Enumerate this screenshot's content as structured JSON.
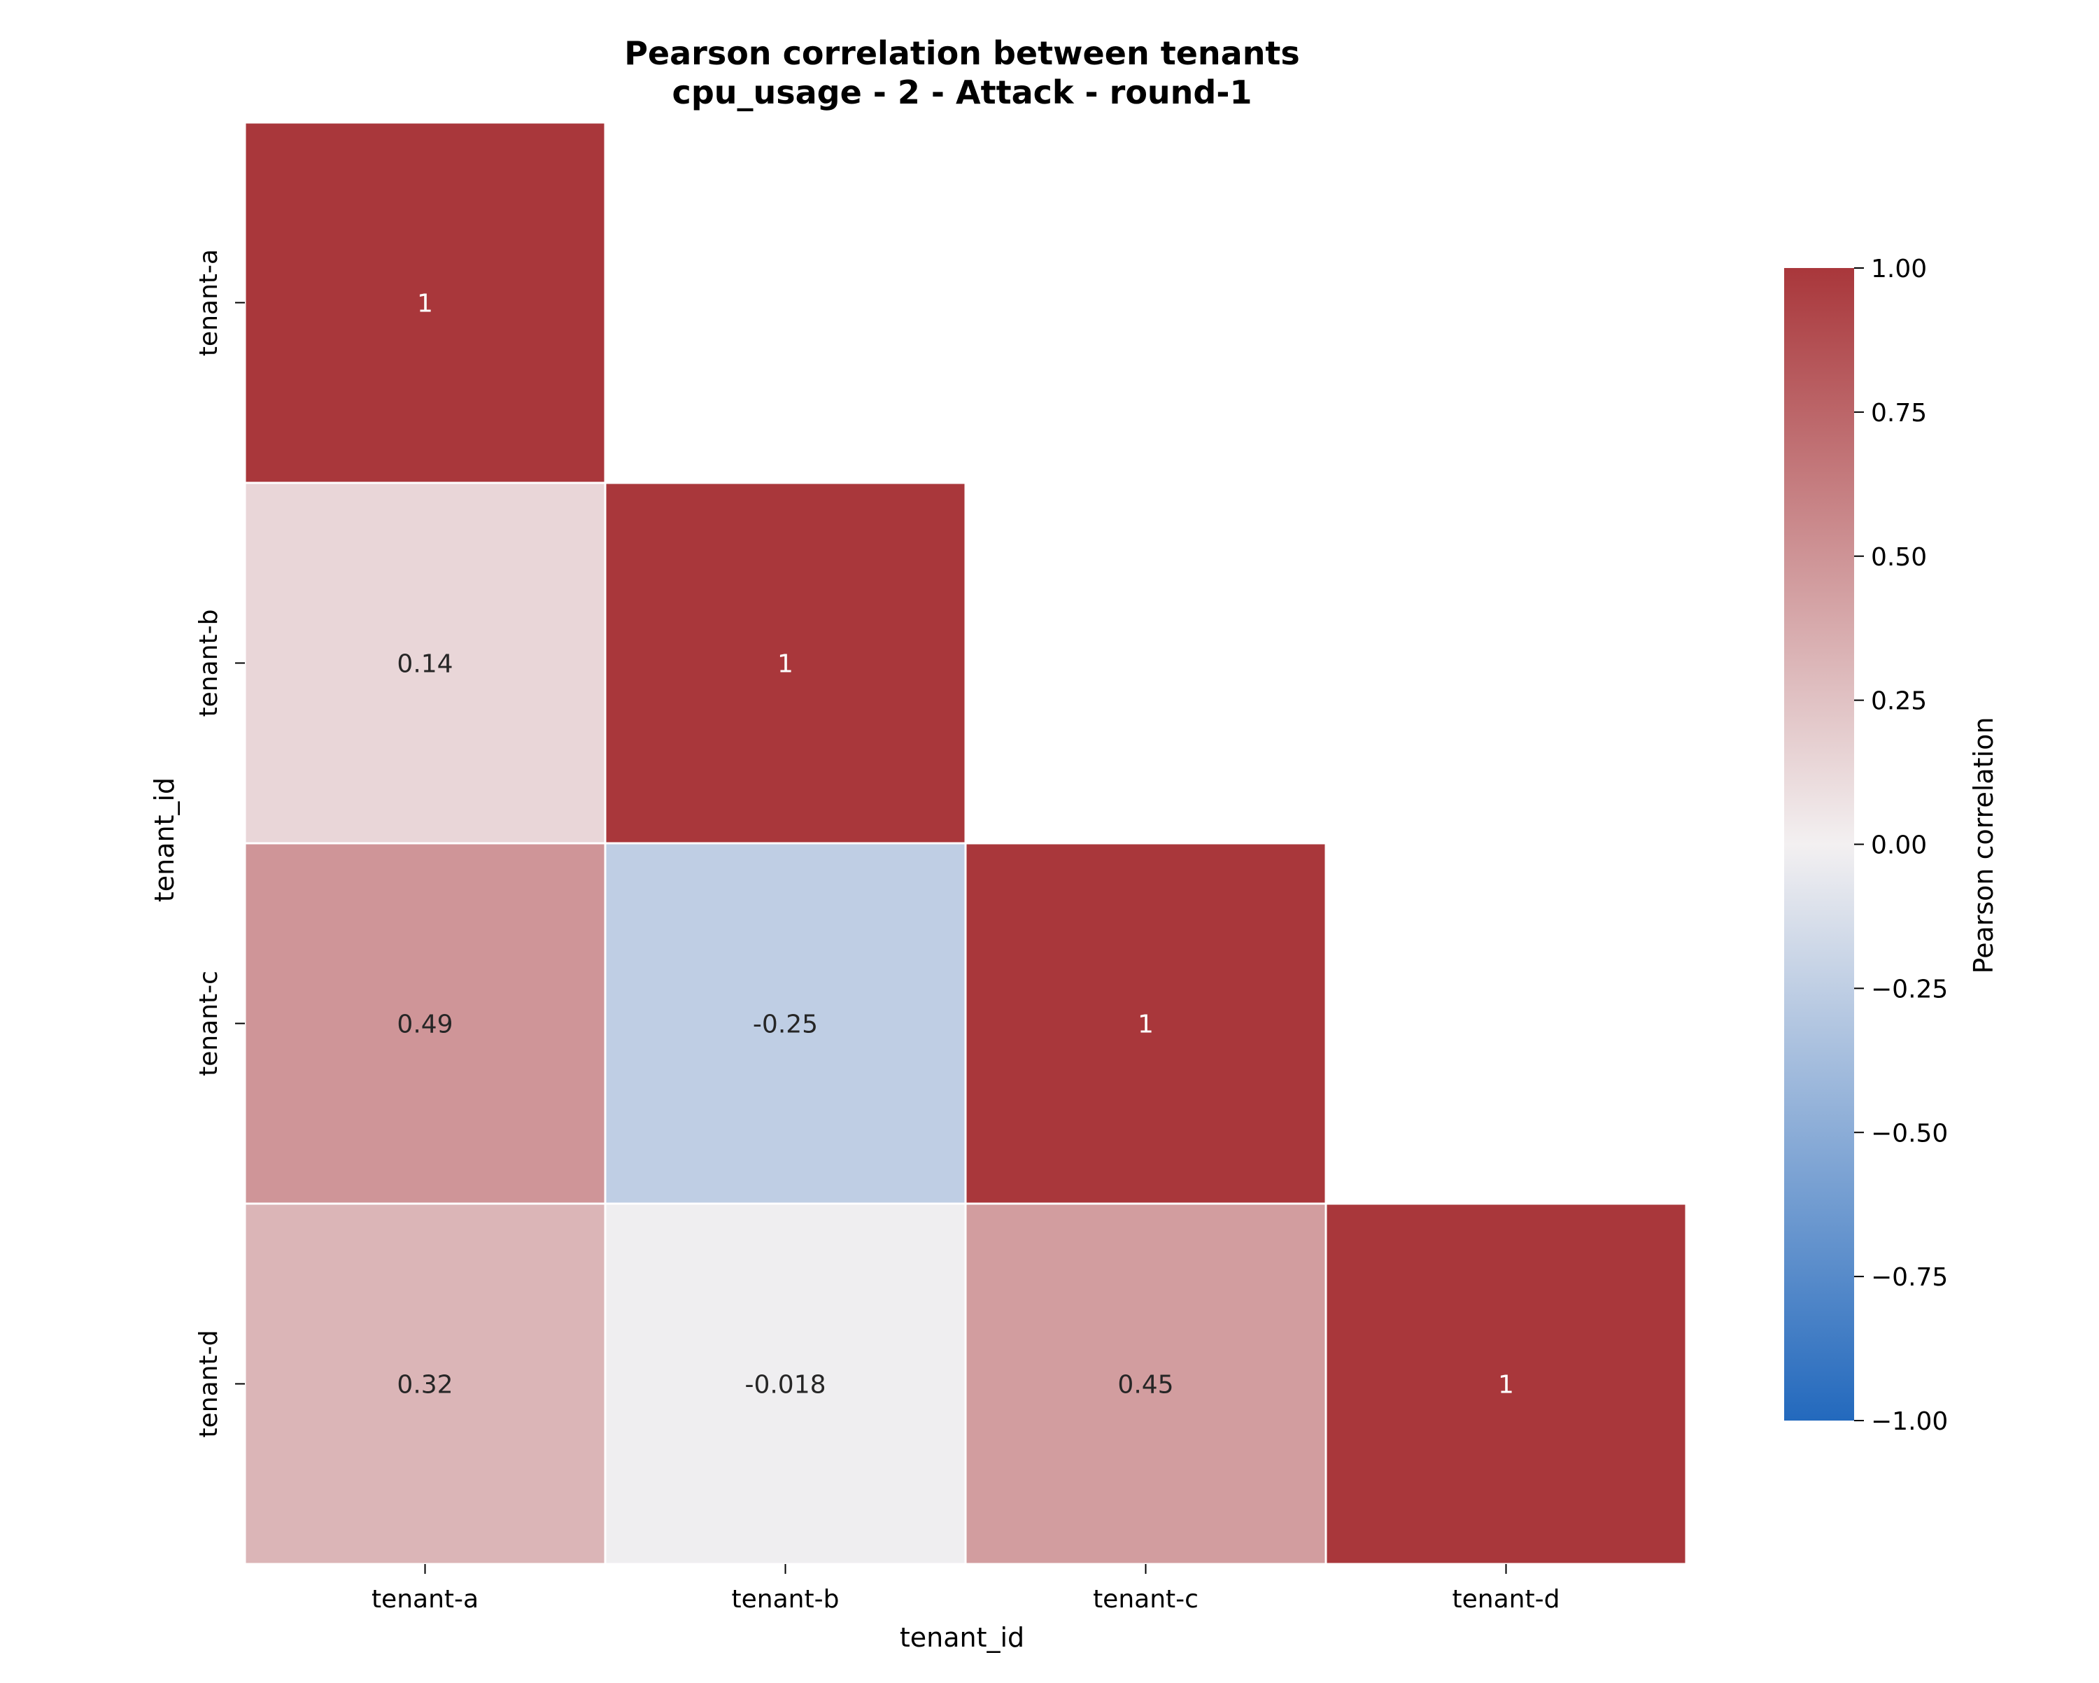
{
  "chart_data": {
    "type": "heatmap",
    "title": "Pearson correlation between tenants",
    "subtitle": "cpu_usage - 2 - Attack - round-1",
    "xlabel": "tenant_id",
    "ylabel": "tenant_id",
    "rows": [
      "tenant-a",
      "tenant-b",
      "tenant-c",
      "tenant-d"
    ],
    "columns": [
      "tenant-a",
      "tenant-b",
      "tenant-c",
      "tenant-d"
    ],
    "mask": "upper-triangle",
    "cells": [
      {
        "row": "tenant-a",
        "col": "tenant-a",
        "value": 1,
        "label": "1"
      },
      {
        "row": "tenant-b",
        "col": "tenant-a",
        "value": 0.14,
        "label": "0.14"
      },
      {
        "row": "tenant-b",
        "col": "tenant-b",
        "value": 1,
        "label": "1"
      },
      {
        "row": "tenant-c",
        "col": "tenant-a",
        "value": 0.49,
        "label": "0.49"
      },
      {
        "row": "tenant-c",
        "col": "tenant-b",
        "value": -0.25,
        "label": "-0.25"
      },
      {
        "row": "tenant-c",
        "col": "tenant-c",
        "value": 1,
        "label": "1"
      },
      {
        "row": "tenant-d",
        "col": "tenant-a",
        "value": 0.32,
        "label": "0.32"
      },
      {
        "row": "tenant-d",
        "col": "tenant-b",
        "value": -0.018,
        "label": "-0.018"
      },
      {
        "row": "tenant-d",
        "col": "tenant-c",
        "value": 0.45,
        "label": "0.45"
      },
      {
        "row": "tenant-d",
        "col": "tenant-d",
        "value": 1,
        "label": "1"
      }
    ],
    "colorbar": {
      "label": "Pearson correlation",
      "vmin": -1,
      "vmax": 1,
      "ticks": [
        1,
        0.75,
        0.5,
        0.25,
        0,
        -0.25,
        -0.5,
        -0.75,
        -1
      ],
      "tick_labels": [
        "1.00",
        "0.75",
        "0.50",
        "0.25",
        "0.00",
        "−0.25",
        "−0.50",
        "−0.75",
        "−1.00"
      ],
      "colormap": "vlag",
      "color_low": "#2369bd",
      "color_mid": "#f3f0f1",
      "color_high": "#a9373b"
    }
  }
}
